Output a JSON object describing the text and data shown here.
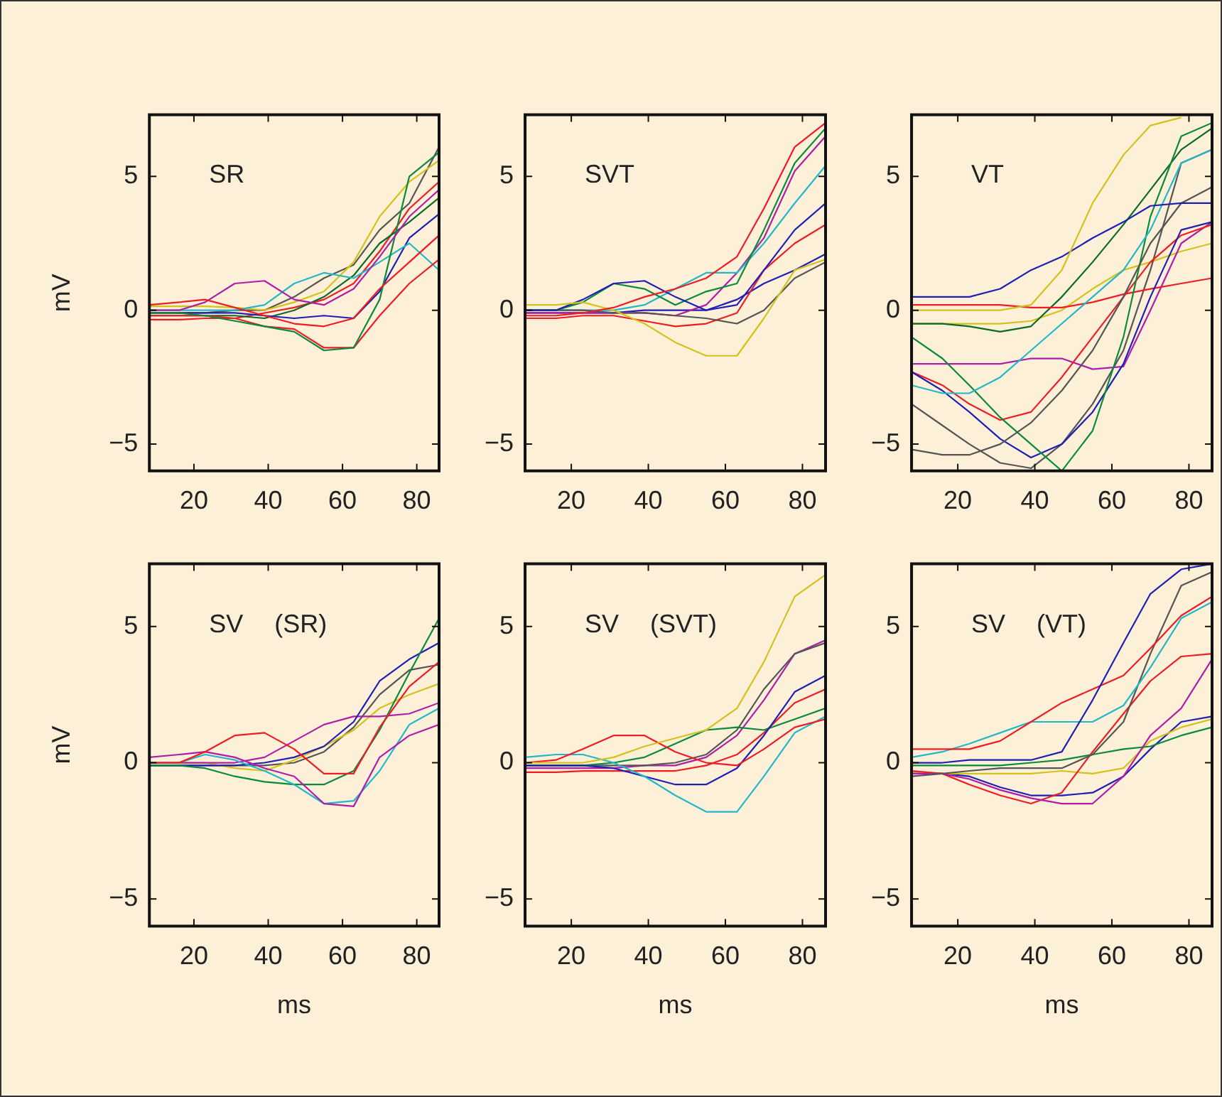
{
  "chart_data": [
    {
      "type": "line",
      "title": "SR",
      "ylabel": "mV",
      "x": [
        8,
        16,
        23,
        31,
        39,
        47,
        55,
        63,
        70,
        78,
        86
      ],
      "xlim": [
        8,
        86
      ],
      "ylim": [
        -6,
        7.3
      ],
      "xticks": [
        20,
        40,
        60,
        80
      ],
      "yticks": [
        -5,
        0,
        5
      ],
      "series": [
        {
          "color": "#ee1c24",
          "values": [
            0.2,
            0.3,
            0.4,
            0.1,
            -0.2,
            -0.5,
            -0.6,
            -0.3,
            0.8,
            1.8,
            2.8
          ]
        },
        {
          "color": "#b01ea8",
          "values": [
            0,
            0,
            0.3,
            1.0,
            1.1,
            0.4,
            0.2,
            0.8,
            2.0,
            3.5,
            4.5
          ]
        },
        {
          "color": "#0a8a3c",
          "values": [
            -0.1,
            -0.1,
            -0.2,
            -0.4,
            -0.6,
            -0.8,
            -1.5,
            -1.4,
            0.4,
            5.0,
            5.9
          ]
        },
        {
          "color": "#ee1c24",
          "values": [
            -0.2,
            -0.2,
            -0.2,
            -0.3,
            -0.6,
            -0.7,
            -1.4,
            -1.4,
            -0.2,
            1.0,
            1.9
          ]
        },
        {
          "color": "#22b8c8",
          "values": [
            0,
            0,
            0,
            0,
            0.2,
            1.0,
            1.4,
            1.2,
            1.8,
            2.5,
            1.5
          ]
        },
        {
          "color": "#1f1fb4",
          "values": [
            -0.1,
            -0.1,
            -0.1,
            -0.1,
            -0.2,
            -0.3,
            -0.2,
            -0.3,
            0.7,
            2.7,
            3.6
          ]
        },
        {
          "color": "#d4c21a",
          "values": [
            0.15,
            0.15,
            0.15,
            0.1,
            0,
            0.3,
            0.7,
            1.8,
            3.5,
            4.8,
            5.6
          ]
        },
        {
          "color": "#555555",
          "values": [
            -0.1,
            -0.1,
            -0.1,
            0,
            0,
            0.5,
            1.2,
            1.7,
            3.0,
            4.0,
            6.1
          ]
        },
        {
          "color": "#0a6a2a",
          "values": [
            -0.2,
            -0.2,
            -0.2,
            -0.2,
            -0.3,
            0,
            0.5,
            1.3,
            2.5,
            3.3,
            4.2
          ]
        },
        {
          "color": "#ee1c24",
          "values": [
            -0.35,
            -0.35,
            -0.3,
            -0.3,
            -0.1,
            0.1,
            0.4,
            1.0,
            2.2,
            3.8,
            4.8
          ]
        }
      ]
    },
    {
      "type": "line",
      "title": "SVT",
      "x": [
        8,
        16,
        23,
        31,
        39,
        47,
        55,
        63,
        70,
        78,
        86
      ],
      "xlim": [
        8,
        86
      ],
      "ylim": [
        -6,
        7.3
      ],
      "xticks": [
        20,
        40,
        60,
        80
      ],
      "yticks": [
        -5,
        0,
        5
      ],
      "series": [
        {
          "color": "#ee1c24",
          "values": [
            -0.2,
            -0.2,
            -0.1,
            0.1,
            0.5,
            0.8,
            1.2,
            2.0,
            3.8,
            6.1,
            7.0
          ]
        },
        {
          "color": "#d4c21a",
          "values": [
            0.2,
            0.2,
            0.3,
            0,
            -0.5,
            -1.2,
            -1.7,
            -1.7,
            -0.3,
            1.5,
            1.9
          ]
        },
        {
          "color": "#1f1fb4",
          "values": [
            0,
            0,
            0.4,
            1.0,
            1.1,
            0.5,
            0,
            0.2,
            1.5,
            3.0,
            4.0
          ]
        },
        {
          "color": "#0a8a3c",
          "values": [
            0,
            0,
            0.3,
            1.0,
            0.8,
            0.2,
            0.7,
            1.0,
            3.0,
            5.5,
            6.8
          ]
        },
        {
          "color": "#555555",
          "values": [
            0,
            0,
            0,
            -0.1,
            -0.1,
            -0.2,
            -0.3,
            -0.5,
            0,
            1.2,
            1.8
          ]
        },
        {
          "color": "#22b8c8",
          "values": [
            0,
            0,
            0,
            0,
            0.2,
            0.8,
            1.4,
            1.4,
            2.5,
            4.0,
            5.4
          ]
        },
        {
          "color": "#b01ea8",
          "values": [
            -0.1,
            -0.1,
            -0.1,
            -0.1,
            -0.1,
            -0.2,
            0.2,
            1.4,
            2.7,
            5.2,
            6.5
          ]
        },
        {
          "color": "#ee1c24",
          "values": [
            -0.3,
            -0.3,
            -0.2,
            -0.2,
            -0.4,
            -0.6,
            -0.5,
            -0.1,
            1.5,
            2.5,
            3.2
          ]
        },
        {
          "color": "#1f1fb4",
          "values": [
            -0.1,
            -0.1,
            -0.1,
            -0.1,
            0,
            0,
            0,
            0.4,
            1.0,
            1.5,
            2.1
          ]
        }
      ]
    },
    {
      "type": "line",
      "title": "VT",
      "x": [
        8,
        16,
        23,
        31,
        39,
        47,
        55,
        63,
        70,
        78,
        86
      ],
      "xlim": [
        8,
        86
      ],
      "ylim": [
        -6,
        7.3
      ],
      "xticks": [
        20,
        40,
        60,
        80
      ],
      "yticks": [
        -5,
        0,
        5
      ],
      "series": [
        {
          "color": "#d4c21a",
          "values": [
            0,
            0,
            0,
            0,
            0.2,
            1.5,
            4.0,
            5.8,
            6.9,
            7.2,
            null
          ]
        },
        {
          "color": "#1f1fb4",
          "values": [
            0.5,
            0.5,
            0.5,
            0.8,
            1.5,
            2.0,
            2.7,
            3.3,
            3.9,
            4.0,
            4.0
          ]
        },
        {
          "color": "#22b8c8",
          "values": [
            -2.8,
            -3.1,
            -3.1,
            -2.5,
            -1.5,
            -0.5,
            0.5,
            1.5,
            3.0,
            5.5,
            6.0
          ]
        },
        {
          "color": "#555555",
          "values": [
            -5.2,
            -5.4,
            -5.4,
            -5.0,
            -4.2,
            -3.0,
            -1.5,
            0.5,
            2.5,
            4.0,
            4.6
          ]
        },
        {
          "color": "#0a8a3c",
          "values": [
            -1.0,
            -1.8,
            -2.8,
            -4.0,
            -5.0,
            -6.0,
            -4.5,
            -1.0,
            3.5,
            6.5,
            7.0
          ]
        },
        {
          "color": "#1f1fb4",
          "values": [
            -2.3,
            -3.0,
            -3.8,
            -4.8,
            -5.5,
            -5.0,
            -3.8,
            -2.0,
            0.5,
            3.0,
            3.3
          ]
        },
        {
          "color": "#ee1c24",
          "values": [
            -2.3,
            -2.8,
            -3.5,
            -4.1,
            -3.8,
            -2.5,
            -1.0,
            0.5,
            1.8,
            2.8,
            3.2
          ]
        },
        {
          "color": "#ee1c24",
          "values": [
            0.2,
            0.2,
            0.2,
            0.2,
            0.1,
            0.1,
            0.3,
            0.6,
            0.8,
            1.0,
            1.2
          ]
        },
        {
          "color": "#b01ea8",
          "values": [
            -2.0,
            -2.0,
            -2.0,
            -2.0,
            -1.8,
            -1.8,
            -2.2,
            -2.1,
            0,
            2.5,
            3.3
          ]
        },
        {
          "color": "#555555",
          "values": [
            -3.5,
            -4.3,
            -5.0,
            -5.7,
            -5.9,
            -5.0,
            -3.5,
            -1.5,
            1.5,
            5.5,
            6.0
          ]
        },
        {
          "color": "#0a6a2a",
          "values": [
            -0.5,
            -0.5,
            -0.6,
            -0.8,
            -0.6,
            0.5,
            1.8,
            3.2,
            4.5,
            6.0,
            6.8
          ]
        },
        {
          "color": "#d4c21a",
          "values": [
            -0.5,
            -0.5,
            -0.5,
            -0.5,
            -0.4,
            0,
            0.8,
            1.5,
            1.8,
            2.2,
            2.5
          ]
        }
      ]
    },
    {
      "type": "line",
      "title": "SV (SR)",
      "xlabel": "ms",
      "ylabel": "mV",
      "x": [
        8,
        16,
        23,
        31,
        39,
        47,
        55,
        63,
        70,
        78,
        86
      ],
      "xlim": [
        8,
        86
      ],
      "ylim": [
        -6,
        7.3
      ],
      "xticks": [
        20,
        40,
        60,
        80
      ],
      "yticks": [
        -5,
        0,
        5
      ],
      "series": [
        {
          "color": "#ee1c24",
          "values": [
            0,
            0,
            0.4,
            1.0,
            1.1,
            0.5,
            -0.4,
            -0.4,
            1.3,
            2.8,
            3.7
          ]
        },
        {
          "color": "#b01ea8",
          "values": [
            0.2,
            0.3,
            0.4,
            0.2,
            -0.2,
            -0.5,
            -1.5,
            -1.6,
            0.2,
            1.0,
            1.4
          ]
        },
        {
          "color": "#22b8c8",
          "values": [
            0,
            0,
            0.3,
            0.1,
            -0.3,
            -0.8,
            -1.5,
            -1.4,
            -0.3,
            1.4,
            2.0
          ]
        },
        {
          "color": "#0a8a3c",
          "values": [
            -0.1,
            -0.1,
            -0.2,
            -0.5,
            -0.7,
            -0.8,
            -0.8,
            -0.3,
            1.2,
            3.3,
            5.3
          ]
        },
        {
          "color": "#1f1fb4",
          "values": [
            -0.1,
            -0.1,
            -0.1,
            -0.1,
            0,
            0.2,
            0.6,
            1.5,
            3.0,
            3.8,
            4.4
          ]
        },
        {
          "color": "#b01ea8",
          "values": [
            0,
            0,
            0,
            0,
            0.2,
            0.8,
            1.4,
            1.7,
            1.7,
            1.8,
            2.2
          ]
        },
        {
          "color": "#d4c21a",
          "values": [
            0,
            0,
            0,
            -0.2,
            -0.3,
            0.1,
            0.6,
            1.2,
            2.0,
            2.5,
            2.9
          ]
        },
        {
          "color": "#555555",
          "values": [
            -0.1,
            -0.1,
            -0.1,
            -0.1,
            -0.1,
            0,
            0.4,
            1.3,
            2.5,
            3.4,
            3.6
          ]
        }
      ]
    },
    {
      "type": "line",
      "title": "SV (SVT)",
      "xlabel": "ms",
      "x": [
        8,
        16,
        23,
        31,
        39,
        47,
        55,
        63,
        70,
        78,
        86
      ],
      "xlim": [
        8,
        86
      ],
      "ylim": [
        -6,
        7.3
      ],
      "xticks": [
        20,
        40,
        60,
        80
      ],
      "yticks": [
        -5,
        0,
        5
      ],
      "series": [
        {
          "color": "#d4c21a",
          "values": [
            0,
            0,
            0,
            0.2,
            0.6,
            0.9,
            1.2,
            2.0,
            3.7,
            6.1,
            6.9
          ]
        },
        {
          "color": "#ee1c24",
          "values": [
            0,
            0.1,
            0.5,
            1.0,
            1.0,
            0.4,
            0,
            -0.1,
            0.5,
            1.3,
            1.6
          ]
        },
        {
          "color": "#22b8c8",
          "values": [
            0.2,
            0.3,
            0.3,
            0,
            -0.5,
            -1.2,
            -1.8,
            -1.8,
            -0.5,
            1.1,
            1.7
          ]
        },
        {
          "color": "#1f1fb4",
          "values": [
            -0.1,
            -0.1,
            -0.1,
            -0.2,
            -0.5,
            -0.8,
            -0.8,
            -0.2,
            1.0,
            2.6,
            3.2
          ]
        },
        {
          "color": "#0a8a3c",
          "values": [
            -0.1,
            -0.1,
            -0.1,
            0,
            0.2,
            0.7,
            1.2,
            1.3,
            1.2,
            1.6,
            2.0
          ]
        },
        {
          "color": "#555555",
          "values": [
            -0.1,
            -0.1,
            -0.1,
            -0.1,
            -0.1,
            0,
            0.3,
            1.2,
            2.7,
            4.0,
            4.4
          ]
        },
        {
          "color": "#b01ea8",
          "values": [
            -0.2,
            -0.2,
            -0.2,
            -0.2,
            -0.1,
            -0.1,
            0.2,
            1.0,
            2.3,
            4.0,
            4.5
          ]
        },
        {
          "color": "#ee1c24",
          "values": [
            -0.35,
            -0.35,
            -0.3,
            -0.3,
            -0.3,
            -0.3,
            -0.1,
            0.3,
            1.1,
            2.2,
            2.7
          ]
        }
      ]
    },
    {
      "type": "line",
      "title": "SV (VT)",
      "xlabel": "ms",
      "x": [
        8,
        16,
        23,
        31,
        39,
        47,
        55,
        63,
        70,
        78,
        86
      ],
      "xlim": [
        8,
        86
      ],
      "ylim": [
        -6,
        7.3
      ],
      "xticks": [
        20,
        40,
        60,
        80
      ],
      "yticks": [
        -5,
        0,
        5
      ],
      "series": [
        {
          "color": "#1f1fb4",
          "values": [
            0,
            0,
            0.1,
            0.1,
            0.1,
            0.4,
            2.3,
            4.4,
            6.2,
            7.1,
            7.3
          ]
        },
        {
          "color": "#ee1c24",
          "values": [
            0.5,
            0.5,
            0.5,
            0.8,
            1.5,
            2.2,
            2.7,
            3.2,
            4.2,
            5.4,
            6.1
          ]
        },
        {
          "color": "#22b8c8",
          "values": [
            0.2,
            0.4,
            0.7,
            1.1,
            1.5,
            1.5,
            1.5,
            2.1,
            3.5,
            5.3,
            5.9
          ]
        },
        {
          "color": "#555555",
          "values": [
            -0.5,
            -0.4,
            -0.3,
            -0.2,
            -0.2,
            -0.2,
            0.3,
            1.5,
            4.0,
            6.5,
            7.0
          ]
        },
        {
          "color": "#b01ea8",
          "values": [
            -0.4,
            -0.4,
            -0.6,
            -1.0,
            -1.3,
            -1.5,
            -1.5,
            -0.5,
            1.0,
            2.0,
            3.8
          ]
        },
        {
          "color": "#ee1c24",
          "values": [
            -0.3,
            -0.4,
            -0.8,
            -1.2,
            -1.5,
            -1.1,
            0.4,
            1.8,
            3.0,
            3.9,
            4.0
          ]
        },
        {
          "color": "#0a8a3c",
          "values": [
            -0.1,
            -0.1,
            -0.1,
            -0.1,
            0,
            0.1,
            0.3,
            0.5,
            0.6,
            1.0,
            1.3
          ]
        },
        {
          "color": "#d4c21a",
          "values": [
            -0.3,
            -0.4,
            -0.4,
            -0.4,
            -0.4,
            -0.3,
            -0.4,
            -0.2,
            0.8,
            1.3,
            1.6
          ]
        },
        {
          "color": "#1f1fb4",
          "values": [
            -0.4,
            -0.4,
            -0.5,
            -0.9,
            -1.2,
            -1.2,
            -1.1,
            -0.5,
            0.5,
            1.5,
            1.7
          ]
        }
      ]
    }
  ]
}
